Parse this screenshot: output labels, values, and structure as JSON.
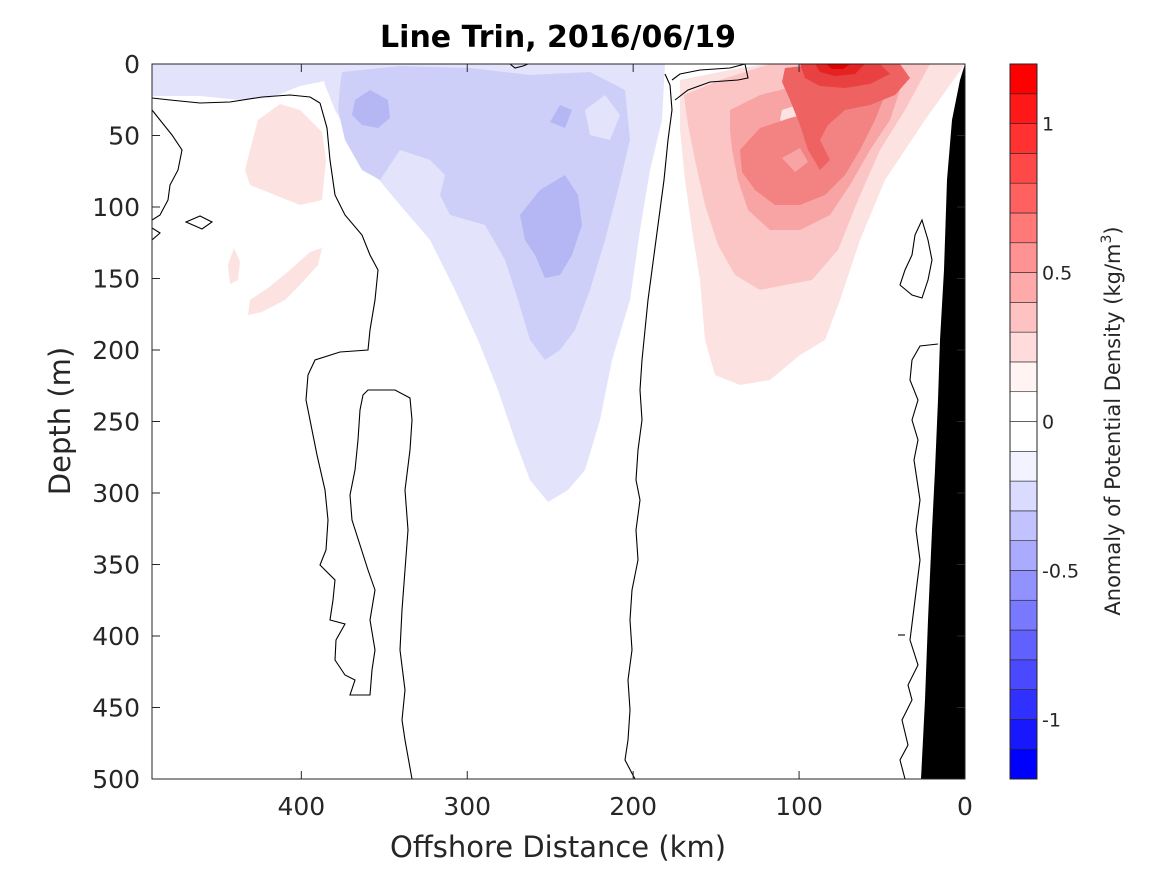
{
  "chart_data": {
    "type": "heatmap",
    "subtype": "filled-contour",
    "title": "Line Trin, 2016/06/19",
    "xlabel": "Offshore Distance (km)",
    "ylabel": "Depth (m)",
    "xlim": [
      490,
      0
    ],
    "x_reversed": true,
    "ylim": [
      0,
      500
    ],
    "y_reversed": true,
    "x_ticks": [
      400,
      300,
      200,
      100,
      0
    ],
    "x_tick_labels": [
      "400",
      "300",
      "200",
      "100",
      "0"
    ],
    "y_ticks": [
      0,
      50,
      100,
      150,
      200,
      250,
      300,
      350,
      400,
      450,
      500
    ],
    "y_tick_labels": [
      "0",
      "50",
      "100",
      "150",
      "200",
      "250",
      "300",
      "350",
      "400",
      "450",
      "500"
    ],
    "colorbar": {
      "label": "Anomaly of Potential Density (kg/m",
      "label_superscript": "3",
      "label_suffix": ")",
      "range": [
        -1.2,
        1.2
      ],
      "ticks": [
        1,
        0.5,
        0,
        -0.5,
        -1
      ],
      "tick_labels": [
        "1",
        "0.5",
        "0",
        "-0.5",
        "-1"
      ],
      "levels": [
        -1.2,
        -1.1,
        -1.0,
        -0.9,
        -0.8,
        -0.7,
        -0.6,
        -0.5,
        -0.4,
        -0.3,
        -0.2,
        -0.1,
        0,
        0.1,
        0.2,
        0.3,
        0.4,
        0.5,
        0.6,
        0.7,
        0.8,
        0.9,
        1.0,
        1.1,
        1.2
      ],
      "colormap": "blue-white-red",
      "neg_color": "#0000ff",
      "pos_color": "#ff0000",
      "zero_color": "#ffffff"
    },
    "regions": [
      {
        "name": "surface negative anomaly",
        "sign": "negative",
        "x_range": [
          490,
          350
        ],
        "depth_range": [
          0,
          15
        ],
        "peak": -0.1
      },
      {
        "name": "offshore negative core",
        "sign": "negative",
        "x_range": [
          335,
          185
        ],
        "depth_range": [
          0,
          305
        ],
        "peak": -0.35
      },
      {
        "name": "offshore weak positive patches",
        "sign": "positive",
        "x_range": [
          460,
          390
        ],
        "depth_range": [
          40,
          170
        ],
        "peak": 0.1
      },
      {
        "name": "nearshore positive anomaly",
        "sign": "positive",
        "x_range": [
          180,
          30
        ],
        "depth_range": [
          0,
          225
        ],
        "peak": 1.0
      }
    ],
    "contour_line": {
      "level": 0,
      "color": "#000000"
    },
    "bathymetry": {
      "color": "#000000",
      "profile": [
        [
          0,
          0
        ],
        [
          7,
          120
        ],
        [
          15,
          300
        ],
        [
          25,
          500
        ]
      ]
    }
  }
}
